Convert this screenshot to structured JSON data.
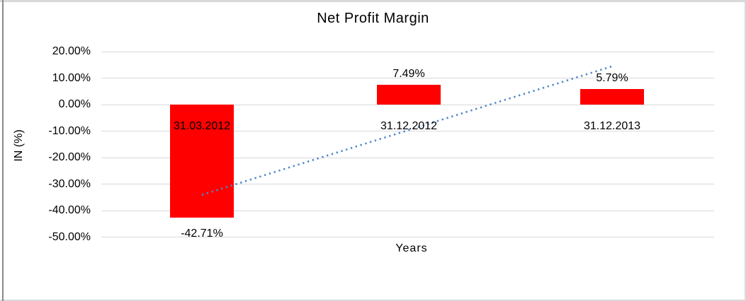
{
  "chart_data": {
    "type": "bar",
    "title": "Net Profit Margin",
    "xlabel": "Years",
    "ylabel": "IN (%)",
    "categories": [
      "31.03.2012",
      "31.12.2012",
      "31.12.2013"
    ],
    "values": [
      -42.71,
      7.49,
      5.79
    ],
    "data_labels": [
      "-42.71%",
      "7.49%",
      "5.79%"
    ],
    "y_ticks": [
      {
        "label": "20.00%",
        "value": 20
      },
      {
        "label": "10.00%",
        "value": 10
      },
      {
        "label": "0.00%",
        "value": 0
      },
      {
        "label": "-10.00%",
        "value": -10
      },
      {
        "label": "-20.00%",
        "value": -20
      },
      {
        "label": "-30.00%",
        "value": -30
      },
      {
        "label": "-40.00%",
        "value": -40
      },
      {
        "label": "-50.00%",
        "value": -50
      }
    ],
    "ylim": [
      -50,
      20
    ],
    "grid": true,
    "legend": "none",
    "bar_color": "#ff0000",
    "gridline_color": "#d9d9d9",
    "trendline": {
      "type": "linear",
      "style": "dotted",
      "color": "#4e86c8",
      "start_value": -34.06,
      "end_value": 14.44
    }
  }
}
